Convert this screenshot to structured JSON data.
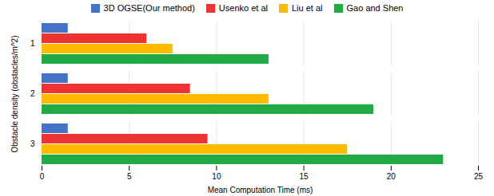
{
  "chart_data": {
    "type": "bar",
    "orientation": "horizontal",
    "categories": [
      "1",
      "2",
      "3"
    ],
    "series": [
      {
        "name": "3D OGSE(Our method)",
        "color": "#4472C4",
        "values": [
          1.5,
          1.5,
          1.5
        ]
      },
      {
        "name": "Usenko et al",
        "color": "#EE3333",
        "values": [
          6.0,
          8.5,
          9.5
        ]
      },
      {
        "name": "Liu et al",
        "color": "#FFBB00",
        "values": [
          7.5,
          13.0,
          17.5
        ]
      },
      {
        "name": "Gao and Shen",
        "color": "#22AA44",
        "values": [
          13.0,
          19.0,
          23.0
        ]
      }
    ],
    "xlabel": "Mean Computation Time (ms)",
    "ylabel": "Obstacle density (obstacles/m^2)",
    "xlim": [
      0,
      25
    ],
    "xticks": [
      0,
      5,
      10,
      15,
      20,
      25
    ],
    "grid": true,
    "legend": "top"
  }
}
